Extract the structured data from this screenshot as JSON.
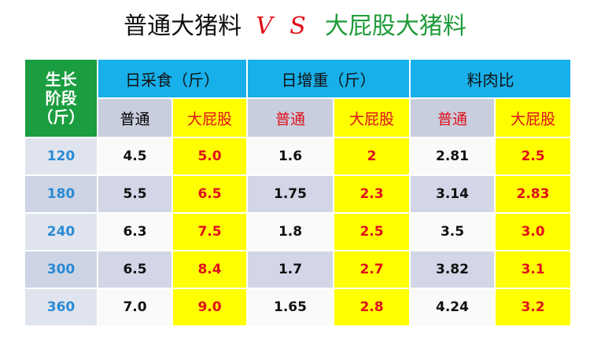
{
  "title": {
    "left": "普通大猪料",
    "vs": "V S",
    "right": "大屁股大猪料"
  },
  "table": {
    "stage_header": [
      "生长",
      "阶段",
      "（斤）"
    ],
    "groups": [
      "日采食（斤）",
      "日增重（斤）",
      "料肉比"
    ],
    "subheaders": [
      "普通",
      "大屁股",
      "普通",
      "大屁股",
      "普通",
      "大屁股"
    ],
    "rows": [
      [
        "120",
        "4.5",
        "5.0",
        "1.6",
        "2",
        "2.81",
        "2.5"
      ],
      [
        "180",
        "5.5",
        "6.5",
        "1.75",
        "2.3",
        "3.14",
        "2.83"
      ],
      [
        "240",
        "6.3",
        "7.5",
        "1.8",
        "2.5",
        "3.5",
        "3.0"
      ],
      [
        "300",
        "6.5",
        "8.4",
        "1.7",
        "2.7",
        "3.82",
        "3.1"
      ],
      [
        "360",
        "7.0",
        "9.0",
        "1.65",
        "2.8",
        "4.24",
        "3.2"
      ]
    ]
  }
}
